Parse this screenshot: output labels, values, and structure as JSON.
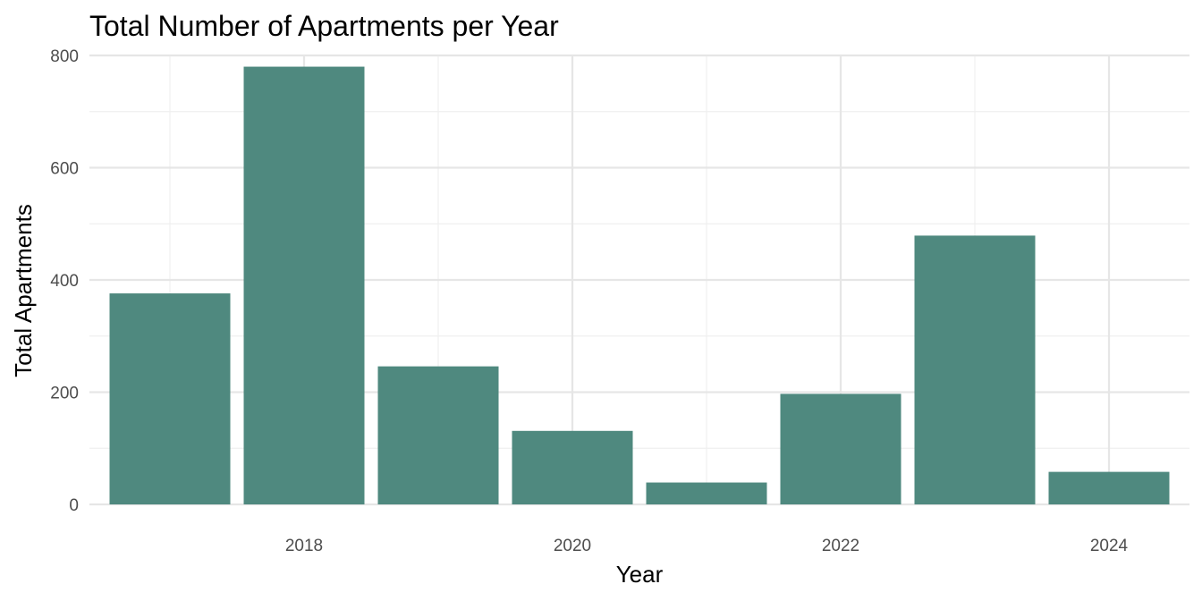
{
  "chart_data": {
    "type": "bar",
    "title": "Total Number of Apartments per Year",
    "xlabel": "Year",
    "ylabel": "Total Apartments",
    "categories": [
      2017,
      2018,
      2019,
      2020,
      2021,
      2022,
      2023,
      2024
    ],
    "values": [
      376,
      780,
      246,
      131,
      39,
      197,
      479,
      58
    ],
    "xlim": [
      2016.4,
      2024.6
    ],
    "ylim": [
      0,
      800
    ],
    "x_ticks": [
      2018,
      2020,
      2022,
      2024
    ],
    "y_ticks": [
      0,
      200,
      400,
      600,
      800
    ],
    "bar_color": "#4f897f",
    "grid": true,
    "legend": "none"
  }
}
